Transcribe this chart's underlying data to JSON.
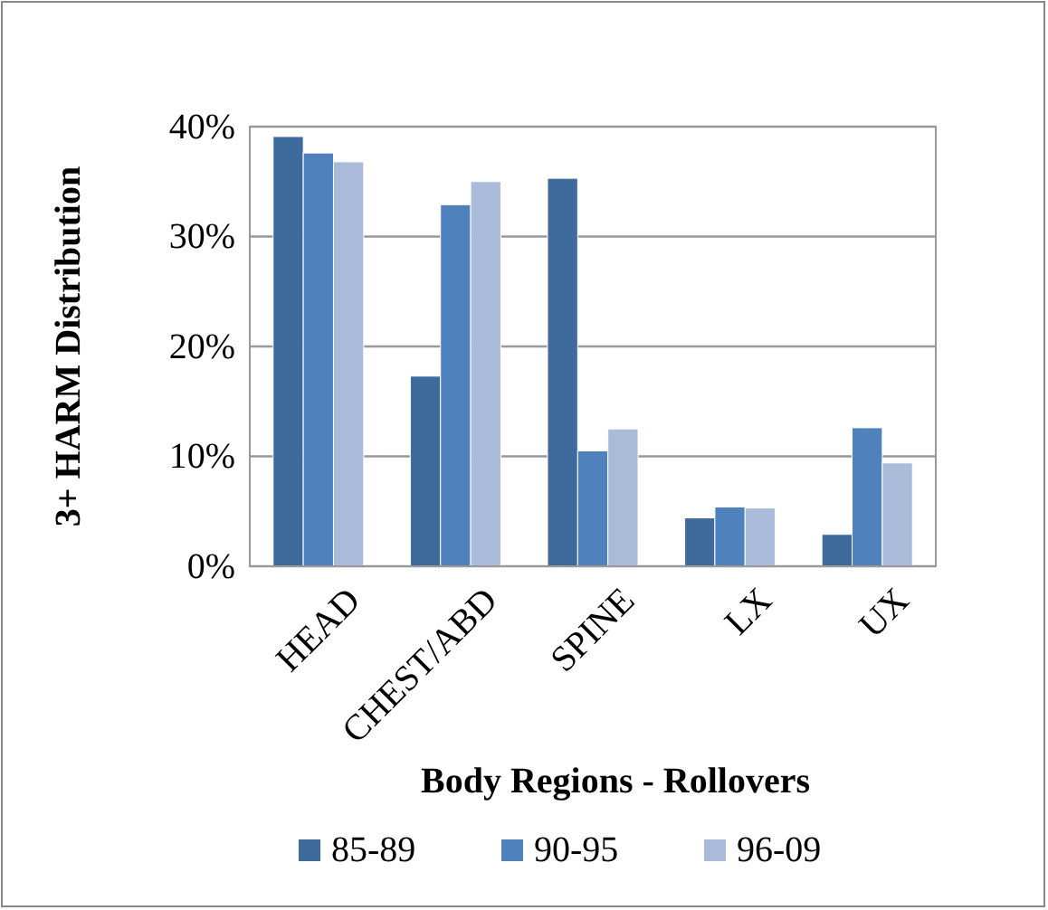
{
  "chart_data": {
    "type": "bar",
    "ylabel": "3+ HARM Distribution",
    "xlabel": "Body Regions - Rollovers",
    "categories": [
      "HEAD",
      "CHEST/ABD",
      "SPINE",
      "LX",
      "UX"
    ],
    "series": [
      {
        "name": "85-89",
        "color": "#3e6a9c",
        "values": [
          39.1,
          17.3,
          35.3,
          4.4,
          2.9
        ]
      },
      {
        "name": "90-95",
        "color": "#4f81bd",
        "values": [
          37.6,
          32.9,
          10.5,
          5.4,
          12.6
        ]
      },
      {
        "name": "96-09",
        "color": "#aabbd9",
        "values": [
          36.8,
          35.0,
          12.5,
          5.3,
          9.4
        ]
      }
    ],
    "ylim": [
      0,
      40
    ],
    "yticks": [
      {
        "value": 0,
        "label": "0%"
      },
      {
        "value": 10,
        "label": "10%"
      },
      {
        "value": 20,
        "label": "20%"
      },
      {
        "value": 30,
        "label": "30%"
      },
      {
        "value": 40,
        "label": "40%"
      }
    ],
    "grid": "y",
    "legend": "bottom"
  }
}
